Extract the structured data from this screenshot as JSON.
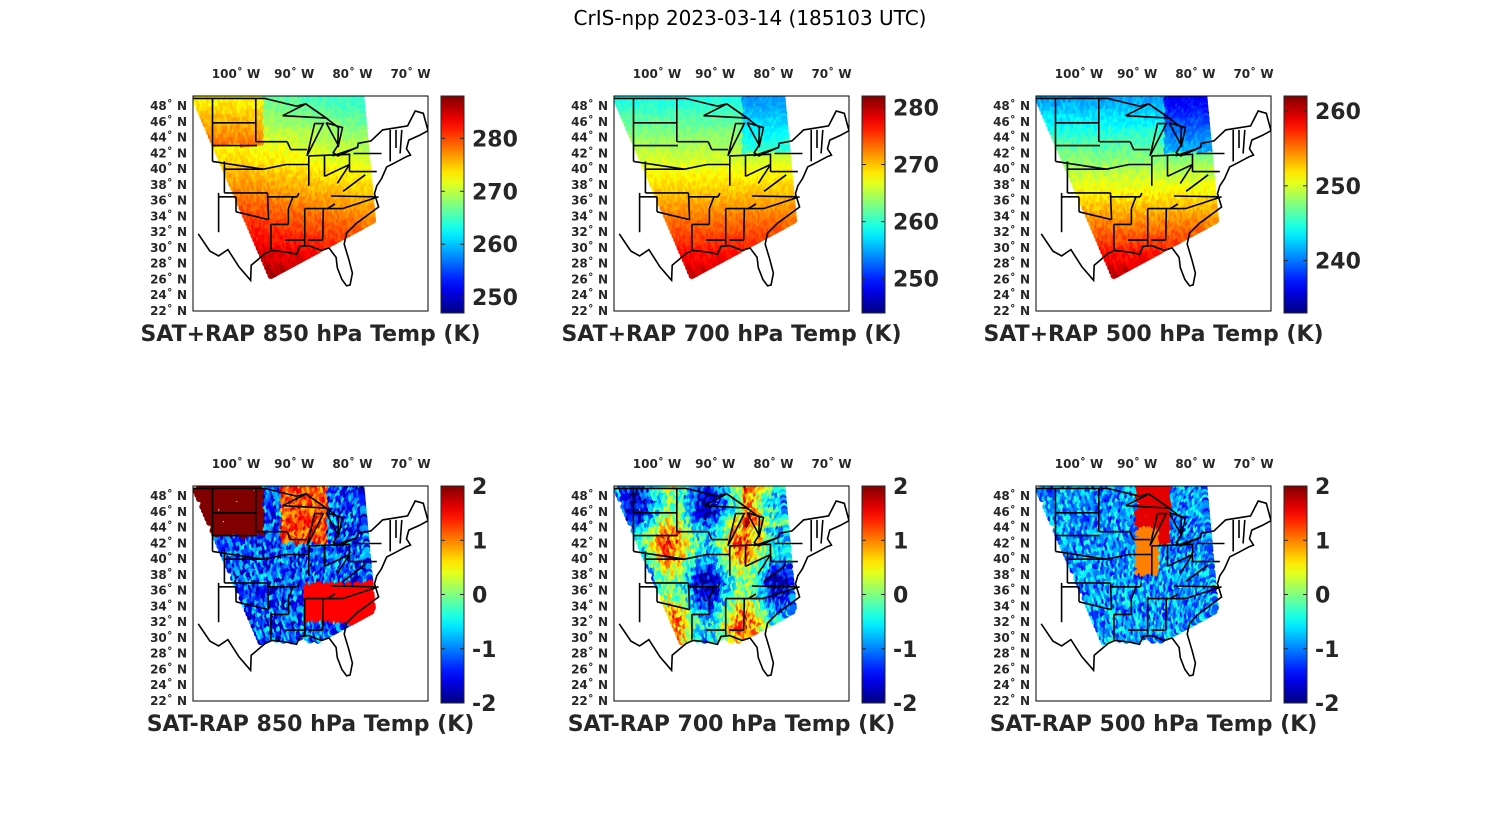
{
  "figure": {
    "title": "CrIS-npp 2023-03-14 (185103 UTC)"
  },
  "lon_ticks": [
    "100˚ W",
    "90˚ W",
    "80˚ W",
    "70˚ W"
  ],
  "lat_ticks": [
    "48˚ N",
    "46˚ N",
    "44˚ N",
    "42˚ N",
    "40˚ N",
    "38˚ N",
    "36˚ N",
    "34˚ N",
    "32˚ N",
    "30˚ N",
    "28˚ N",
    "26˚ N",
    "24˚ N",
    "22˚ N"
  ],
  "colormap": "jet",
  "colors": {
    "land_outline": "#000000",
    "frame": "#000000",
    "label": "#262626"
  },
  "panels": [
    {
      "caption": "SAT+RAP 850 hPa Temp (K)",
      "colorbar_ticks": [
        "280",
        "270",
        "260",
        "250"
      ],
      "range": [
        247,
        288
      ],
      "field": "sum850"
    },
    {
      "caption": "SAT+RAP 700 hPa Temp (K)",
      "colorbar_ticks": [
        "280",
        "270",
        "260",
        "250"
      ],
      "range": [
        244,
        282
      ],
      "field": "sum700"
    },
    {
      "caption": "SAT+RAP 500 hPa Temp (K)",
      "colorbar_ticks": [
        "260",
        "250",
        "240"
      ],
      "range": [
        233,
        262
      ],
      "field": "sum500"
    },
    {
      "caption": "SAT-RAP 850 hPa Temp (K)",
      "colorbar_ticks": [
        "2",
        "1",
        "0",
        "-1",
        "-2"
      ],
      "range": [
        -2,
        2
      ],
      "field": "diff850"
    },
    {
      "caption": "SAT-RAP 700 hPa Temp (K)",
      "colorbar_ticks": [
        "2",
        "1",
        "0",
        "-1",
        "-2"
      ],
      "range": [
        -2,
        2
      ],
      "field": "diff700"
    },
    {
      "caption": "SAT-RAP 500 hPa Temp (K)",
      "colorbar_ticks": [
        "2",
        "1",
        "0",
        "-1",
        "-2"
      ],
      "range": [
        -2,
        2
      ],
      "field": "diff500"
    }
  ]
}
